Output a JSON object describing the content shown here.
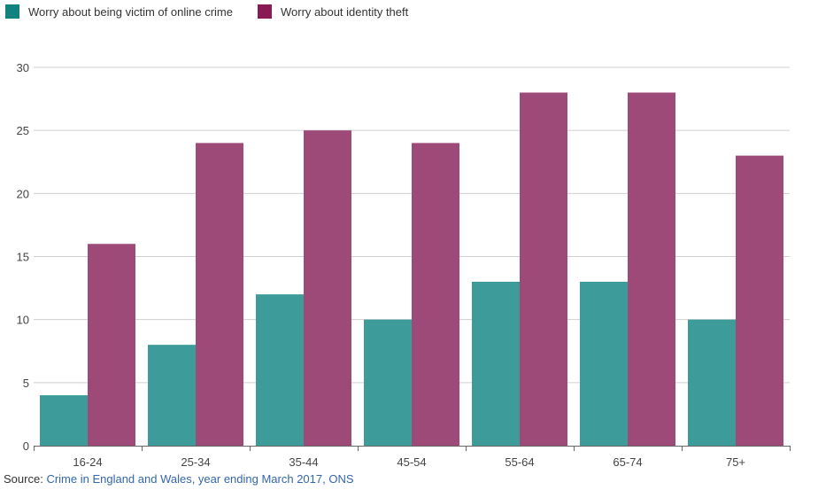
{
  "chart_data": {
    "type": "bar",
    "title": "",
    "xlabel": "",
    "ylabel": "",
    "categories": [
      "16-24",
      "25-34",
      "35-44",
      "45-54",
      "55-64",
      "65-74",
      "75+"
    ],
    "series": [
      {
        "name": "Worry about being victim of online crime",
        "color": "#3d9c9a",
        "values": [
          4,
          8,
          12,
          10,
          13,
          13,
          10
        ]
      },
      {
        "name": "Worry about identity theft",
        "color": "#9e4a78",
        "values": [
          16,
          24,
          25,
          24,
          28,
          28,
          23
        ]
      }
    ],
    "ylim": [
      0,
      30
    ],
    "yticks": [
      0,
      5,
      10,
      15,
      20,
      25,
      30
    ],
    "grid": true,
    "legend": "top-left"
  },
  "colors": {
    "series_1_swatch": "#128281",
    "series_2_swatch": "#8a1a53"
  },
  "source": {
    "label": "Source:",
    "link_text": "Crime in England and Wales, year ending March 2017, ONS"
  }
}
